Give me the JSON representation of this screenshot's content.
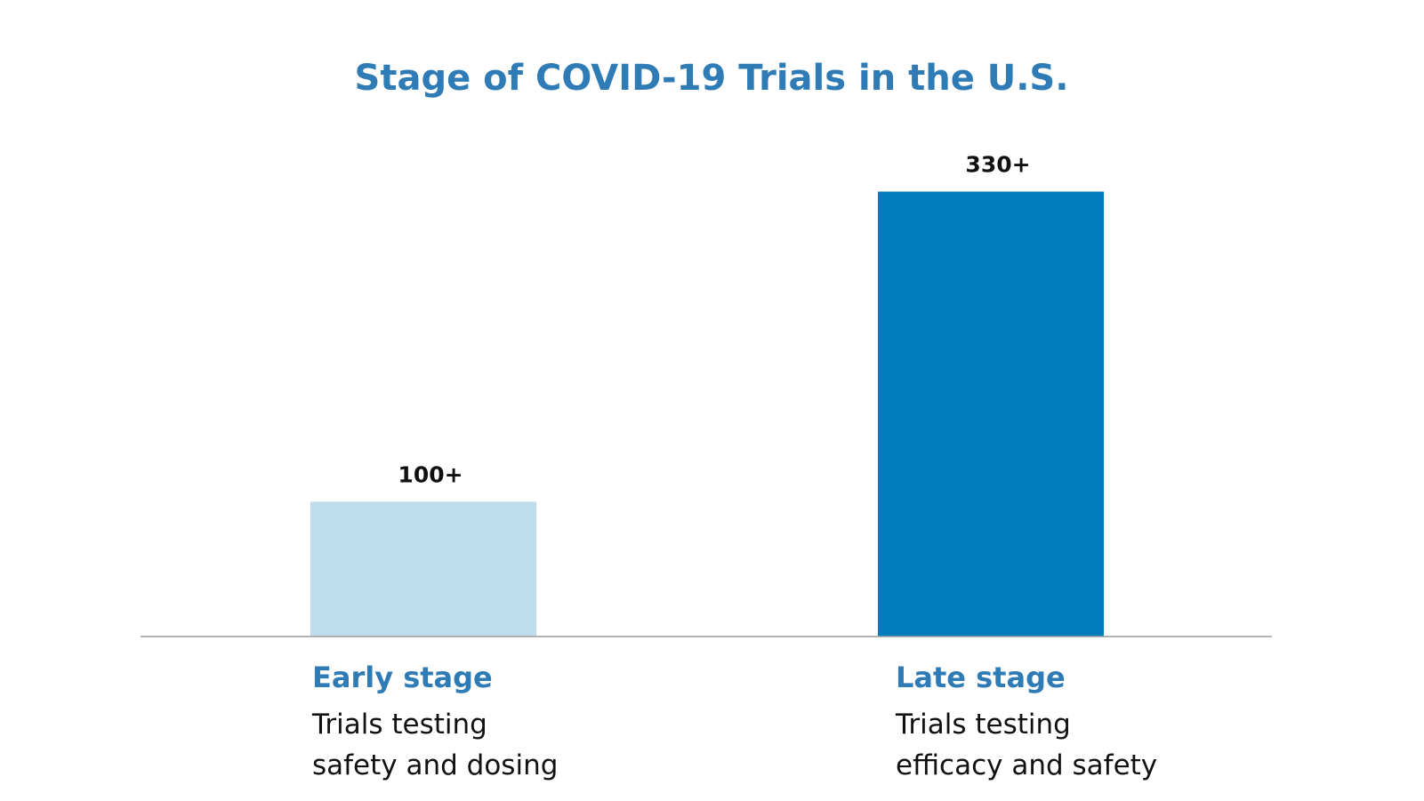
{
  "chart_data": {
    "type": "bar",
    "title": "Stage of COVID-19 Trials in the U.S.",
    "xlabel": "",
    "ylabel": "",
    "ylim": [
      0,
      360
    ],
    "grid": false,
    "categories": [
      "Early stage",
      "Late stage"
    ],
    "values": [
      100,
      330
    ],
    "value_labels": [
      "100+",
      "330+"
    ],
    "descriptions": [
      [
        "Trials testing",
        "safety and dosing"
      ],
      [
        "Trials testing",
        "efficacy and safety"
      ]
    ],
    "colors": {
      "title": "#2e7bb6",
      "category_label": "#2e7bb6",
      "bars": [
        "#bedcee",
        "#007dbd"
      ],
      "axis": "#9a9a9a"
    }
  }
}
